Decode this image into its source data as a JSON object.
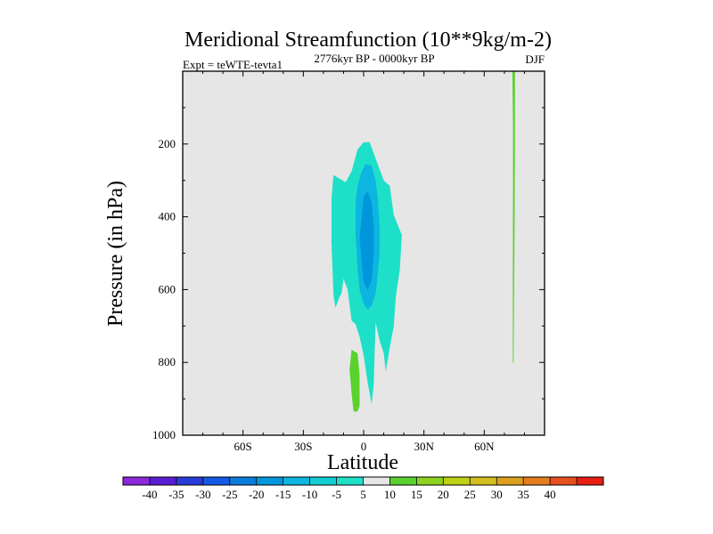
{
  "chart_data": {
    "type": "heatmap",
    "title": "Meridional Streamfunction (10**9kg/m-2)",
    "subtitle_left": "Expt = teWTE-tevta1",
    "subtitle_center": "2776kyr BP - 0000kyr BP",
    "subtitle_right": "DJF",
    "xlabel": "Latitude",
    "ylabel": "Pressure (in hPa)",
    "x_range": [
      -90,
      90
    ],
    "y_range": [
      0,
      1000
    ],
    "y_inverted": true,
    "x_ticks": [
      {
        "value": -60,
        "label": "60S"
      },
      {
        "value": -30,
        "label": "30S"
      },
      {
        "value": 0,
        "label": "0"
      },
      {
        "value": 30,
        "label": "30N"
      },
      {
        "value": 60,
        "label": "60N"
      }
    ],
    "y_ticks": [
      {
        "value": 200,
        "label": "200"
      },
      {
        "value": 400,
        "label": "400"
      },
      {
        "value": 600,
        "label": "600"
      },
      {
        "value": 800,
        "label": "800"
      },
      {
        "value": 1000,
        "label": "1000"
      }
    ],
    "background_color": "#e6e6e6",
    "contour_regions": [
      {
        "name": "region-minus-5-cell",
        "level": "-10 to -5",
        "color": "#1ee0c8",
        "points": [
          [
            -15,
            285
          ],
          [
            -12,
            295
          ],
          [
            -9,
            305
          ],
          [
            -6,
            275
          ],
          [
            -3,
            215
          ],
          [
            0,
            195
          ],
          [
            3,
            195
          ],
          [
            6,
            240
          ],
          [
            10,
            300
          ],
          [
            13,
            315
          ],
          [
            15,
            395
          ],
          [
            19,
            450
          ],
          [
            18,
            545
          ],
          [
            16,
            620
          ],
          [
            15,
            700
          ],
          [
            13,
            760
          ],
          [
            11,
            825
          ],
          [
            10,
            775
          ],
          [
            8,
            740
          ],
          [
            6,
            690
          ],
          [
            5,
            860
          ],
          [
            4,
            915
          ],
          [
            2,
            855
          ],
          [
            0,
            780
          ],
          [
            -2,
            730
          ],
          [
            -4,
            695
          ],
          [
            -6,
            685
          ],
          [
            -8,
            600
          ],
          [
            -10,
            570
          ],
          [
            -11,
            610
          ],
          [
            -12,
            620
          ],
          [
            -14,
            650
          ],
          [
            -15,
            615
          ],
          [
            -16,
            470
          ],
          [
            -16,
            350
          ]
        ]
      },
      {
        "name": "region-minus-10-cell",
        "level": "-15 to -10",
        "color": "#0cb6e0",
        "points": [
          [
            -3,
            315
          ],
          [
            -1,
            275
          ],
          [
            1,
            255
          ],
          [
            4,
            260
          ],
          [
            6,
            300
          ],
          [
            7,
            350
          ],
          [
            8,
            420
          ],
          [
            8,
            500
          ],
          [
            7,
            560
          ],
          [
            6,
            610
          ],
          [
            4,
            645
          ],
          [
            2,
            655
          ],
          [
            0,
            640
          ],
          [
            -2,
            600
          ],
          [
            -3,
            540
          ],
          [
            -4,
            450
          ],
          [
            -4,
            360
          ]
        ]
      },
      {
        "name": "region-minus-15-cell",
        "level": "-20 to -15",
        "color": "#0096dc",
        "points": [
          [
            -1,
            405
          ],
          [
            0,
            345
          ],
          [
            2,
            330
          ],
          [
            4,
            360
          ],
          [
            5,
            430
          ],
          [
            5,
            510
          ],
          [
            4,
            575
          ],
          [
            2,
            600
          ],
          [
            0,
            580
          ],
          [
            -1,
            520
          ],
          [
            -2,
            460
          ]
        ]
      },
      {
        "name": "region-plus-5-south",
        "level": "5 to 10",
        "color": "#5ad22d",
        "points": [
          [
            -6,
            765
          ],
          [
            -3,
            775
          ],
          [
            -2,
            835
          ],
          [
            -2,
            920
          ],
          [
            -3,
            935
          ],
          [
            -5,
            935
          ],
          [
            -6,
            885
          ],
          [
            -7,
            820
          ]
        ]
      },
      {
        "name": "region-plus-5-north",
        "level": "5 to 10",
        "color": "#5ad22d",
        "points": [
          [
            74,
            0
          ],
          [
            75.3,
            0
          ],
          [
            75.3,
            200
          ],
          [
            75.1,
            420
          ],
          [
            74.8,
            650
          ],
          [
            74.6,
            800
          ],
          [
            74.2,
            800
          ],
          [
            74.2,
            600
          ],
          [
            74.3,
            350
          ],
          [
            74.3,
            150
          ]
        ]
      }
    ],
    "colorbar": {
      "labels": [
        "-40",
        "-35",
        "-30",
        "-25",
        "-20",
        "-15",
        "-10",
        "-5",
        "5",
        "10",
        "15",
        "20",
        "25",
        "30",
        "35",
        "40"
      ],
      "colors": [
        "#8c28dc",
        "#5a1ed2",
        "#283cd7",
        "#145ae6",
        "#0a7ddc",
        "#0096dc",
        "#0cb6e0",
        "#12cdd2",
        "#1ee0c8",
        "#e6e6e6",
        "#5ad22d",
        "#8cd21e",
        "#bed214",
        "#d2be1e",
        "#dca01e",
        "#e67d1e",
        "#e6501e",
        "#e61e14"
      ]
    }
  }
}
